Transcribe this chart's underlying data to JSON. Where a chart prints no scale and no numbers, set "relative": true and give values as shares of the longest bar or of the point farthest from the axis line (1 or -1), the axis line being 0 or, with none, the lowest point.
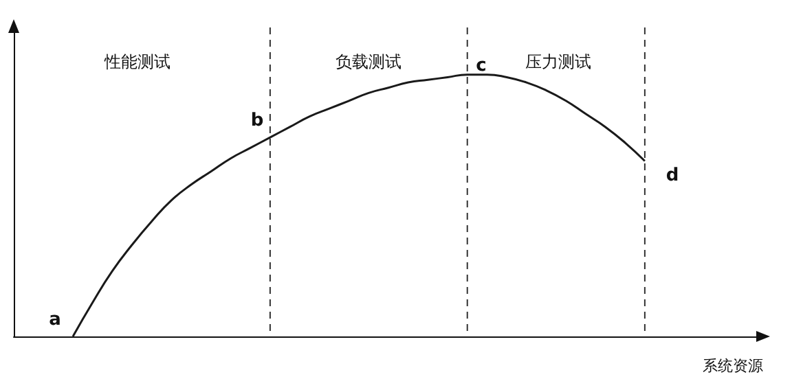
{
  "chart_data": {
    "type": "line",
    "relative": true,
    "xlabel": "系统资源",
    "categories": [
      null,
      null,
      null,
      null,
      null,
      null,
      null,
      null,
      null,
      null,
      null,
      null,
      null,
      null,
      null,
      null,
      null,
      null,
      null,
      null,
      null,
      null,
      null,
      null,
      null,
      null,
      null,
      null,
      null,
      null,
      null,
      null,
      null,
      null,
      null,
      null,
      null,
      null,
      null
    ],
    "series": [
      {
        "color": "#1a1a1a",
        "values": [
          null,
          null,
          null,
          0,
          0.13,
          0.25,
          0.35,
          0.44,
          0.52,
          0.58,
          0.63,
          0.68,
          0.72,
          0.76,
          0.8,
          0.84,
          0.87,
          0.9,
          0.93,
          0.95,
          0.97,
          0.98,
          0.99,
          1,
          1,
          0.99,
          0.97,
          0.94,
          0.9,
          0.85,
          0.8,
          0.74,
          0.67,
          null,
          null,
          null,
          null,
          null,
          null
        ]
      }
    ],
    "annotations": [
      "性能测试",
      "负载测试",
      "压力测试",
      "a",
      "b",
      "c",
      "d"
    ],
    "grid": "x",
    "marker": "none",
    "line_style": "solid"
  }
}
